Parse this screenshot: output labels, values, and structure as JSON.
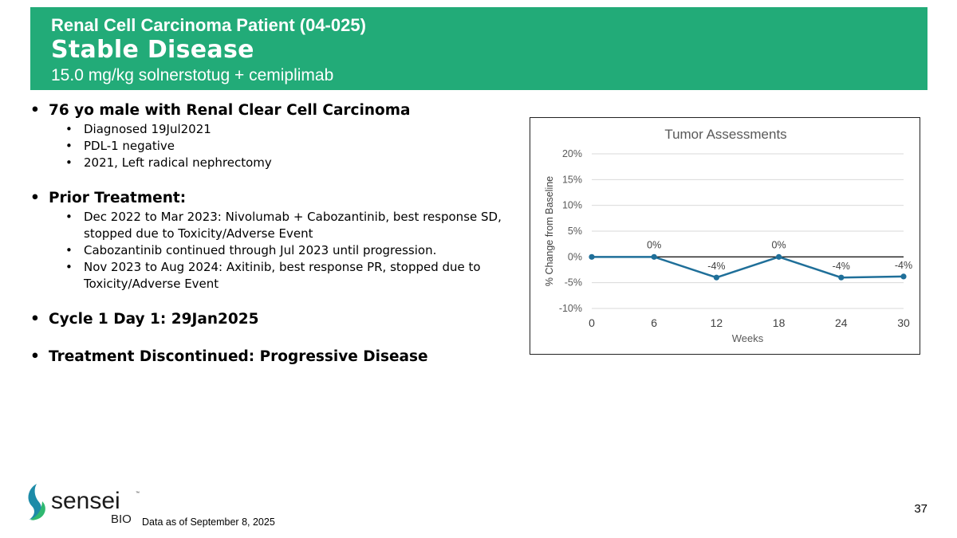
{
  "header": {
    "subtitle": "Renal Cell Carcinoma Patient (04-025)",
    "title": "Stable Disease",
    "dose": "15.0 mg/kg solnerstotug + cemiplimab"
  },
  "sections": [
    {
      "heading": "76 yo male with Renal Clear Cell Carcinoma",
      "items": [
        "Diagnosed 19Jul2021",
        "PDL-1 negative",
        "2021, Left radical nephrectomy"
      ]
    },
    {
      "heading": "Prior Treatment:",
      "items": [
        "Dec 2022 to Mar 2023: Nivolumab + Cabozantinib, best response SD, stopped due to Toxicity/Adverse Event",
        "Cabozantinib continued through Jul 2023 until progression.",
        "Nov 2023 to Aug 2024: Axitinib, best response PR, stopped due to Toxicity/Adverse Event"
      ]
    },
    {
      "heading": "Cycle 1 Day 1: 29Jan2025",
      "items": []
    },
    {
      "heading": "Treatment Discontinued: Progressive Disease",
      "items": []
    }
  ],
  "chart_data": {
    "type": "line",
    "title": "Tumor Assessments",
    "xlabel": "Weeks",
    "ylabel": "% Change from Baseline",
    "x": [
      0,
      6,
      12,
      18,
      24,
      30
    ],
    "xticks": [
      "0",
      "6",
      "12",
      "18",
      "24",
      "30"
    ],
    "yticks": [
      "20%",
      "15%",
      "10%",
      "5%",
      "0%",
      "-5%",
      "-10%"
    ],
    "ylim": [
      -10,
      20
    ],
    "xlim": [
      0,
      30
    ],
    "grid": true,
    "series": [
      {
        "values": [
          0,
          0,
          -4,
          0,
          -4,
          -3.8
        ],
        "color": "#1f6f99"
      }
    ],
    "data_labels": [
      {
        "x": 6,
        "text": "0%"
      },
      {
        "x": 12,
        "text": "-4%"
      },
      {
        "x": 18,
        "text": "0%"
      },
      {
        "x": 24,
        "text": "-4%"
      },
      {
        "x": 30,
        "text": "-4%"
      }
    ]
  },
  "logo": {
    "name": "sensei",
    "sub": "BIO",
    "tm": "™"
  },
  "footnote": "Data as of September 8, 2025",
  "page_number": "37",
  "colors": {
    "header_bg": "#22ab78",
    "line": "#1f6f99",
    "logo_teal": "#1d8ba8",
    "logo_green": "#2fb870"
  }
}
